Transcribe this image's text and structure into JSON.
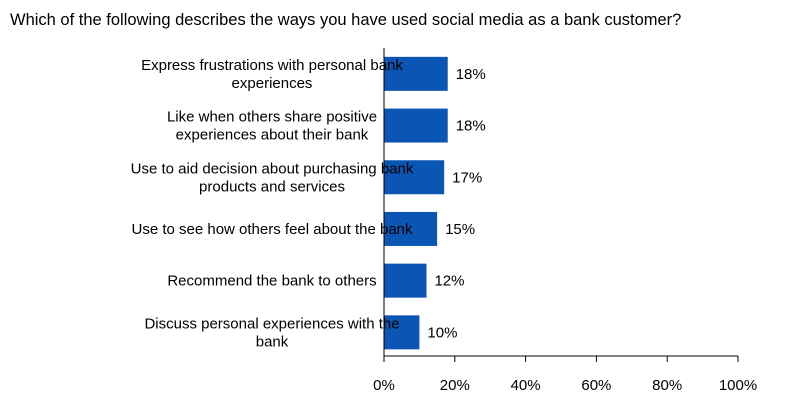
{
  "chart_data": {
    "type": "bar",
    "orientation": "horizontal",
    "title": "Which of the following describes the ways you have used social media as a bank customer?",
    "categories": [
      [
        "Express frustrations with personal bank",
        "experiences"
      ],
      [
        "Like when others share positive",
        "experiences about their bank"
      ],
      [
        "Use to aid decision about purchasing bank",
        "products and services"
      ],
      [
        "Use to see how others feel about the bank"
      ],
      [
        "Recommend the bank to others"
      ],
      [
        "Discuss personal experiences with the",
        "bank"
      ]
    ],
    "values": [
      18,
      18,
      17,
      15,
      12,
      10
    ],
    "value_labels": [
      "18%",
      "18%",
      "17%",
      "15%",
      "12%",
      "10%"
    ],
    "xlim": [
      0,
      100
    ],
    "xticks": [
      0,
      20,
      40,
      60,
      80,
      100
    ],
    "xtick_labels": [
      "0%",
      "20%",
      "40%",
      "60%",
      "80%",
      "100%"
    ],
    "grid": false,
    "legend": "none",
    "bar_color": "#0b55b5",
    "axis_color": "#000000"
  }
}
